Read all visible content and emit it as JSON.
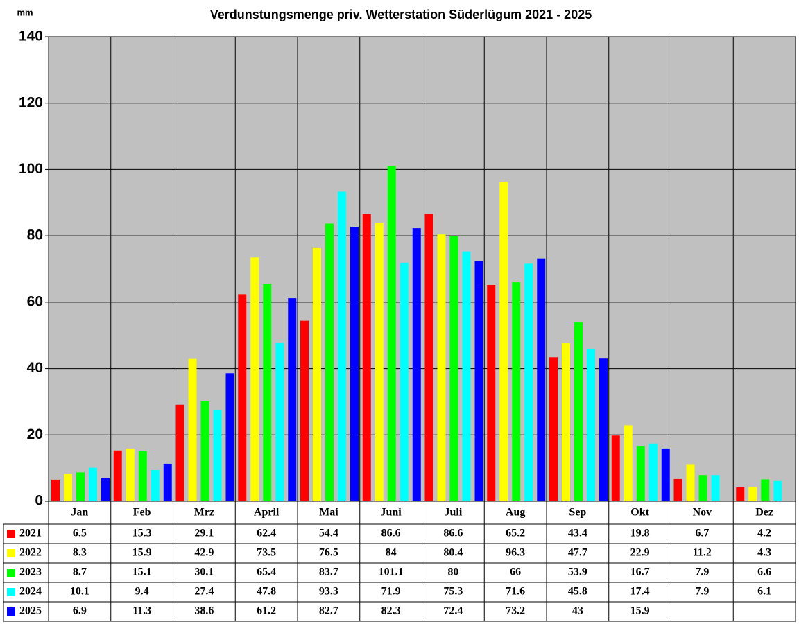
{
  "chart_data": {
    "type": "bar",
    "title": "Verdunstungsmenge priv. Wetterstation Süderlügum 2021 - 2025",
    "y_label": "mm",
    "categories": [
      "Jan",
      "Feb",
      "Mrz",
      "April",
      "Mai",
      "Juni",
      "Juli",
      "Aug",
      "Sep",
      "Okt",
      "Nov",
      "Dez"
    ],
    "series": [
      {
        "name": "2021",
        "color": "#ff0000",
        "values": [
          6.5,
          15.3,
          29.1,
          62.4,
          54.4,
          86.6,
          86.6,
          65.2,
          43.4,
          19.8,
          6.7,
          4.2
        ]
      },
      {
        "name": "2022",
        "color": "#ffff00",
        "values": [
          8.3,
          15.9,
          42.9,
          73.5,
          76.5,
          84,
          80.4,
          96.3,
          47.7,
          22.9,
          11.2,
          4.3
        ]
      },
      {
        "name": "2023",
        "color": "#00ff00",
        "values": [
          8.7,
          15.1,
          30.1,
          65.4,
          83.7,
          101.1,
          80,
          66,
          53.9,
          16.7,
          7.9,
          6.6
        ]
      },
      {
        "name": "2024",
        "color": "#00ffff",
        "values": [
          10.1,
          9.4,
          27.4,
          47.8,
          93.3,
          71.9,
          75.3,
          71.6,
          45.8,
          17.4,
          7.9,
          6.1
        ]
      },
      {
        "name": "2025",
        "color": "#0000ff",
        "values": [
          6.9,
          11.3,
          38.6,
          61.2,
          82.7,
          82.3,
          72.4,
          73.2,
          43,
          15.9,
          null,
          null
        ]
      }
    ],
    "ylim": [
      0,
      140
    ],
    "yticks": [
      0,
      20,
      40,
      60,
      80,
      100,
      120,
      140
    ],
    "grid": true,
    "background": "#c0c0c0"
  }
}
